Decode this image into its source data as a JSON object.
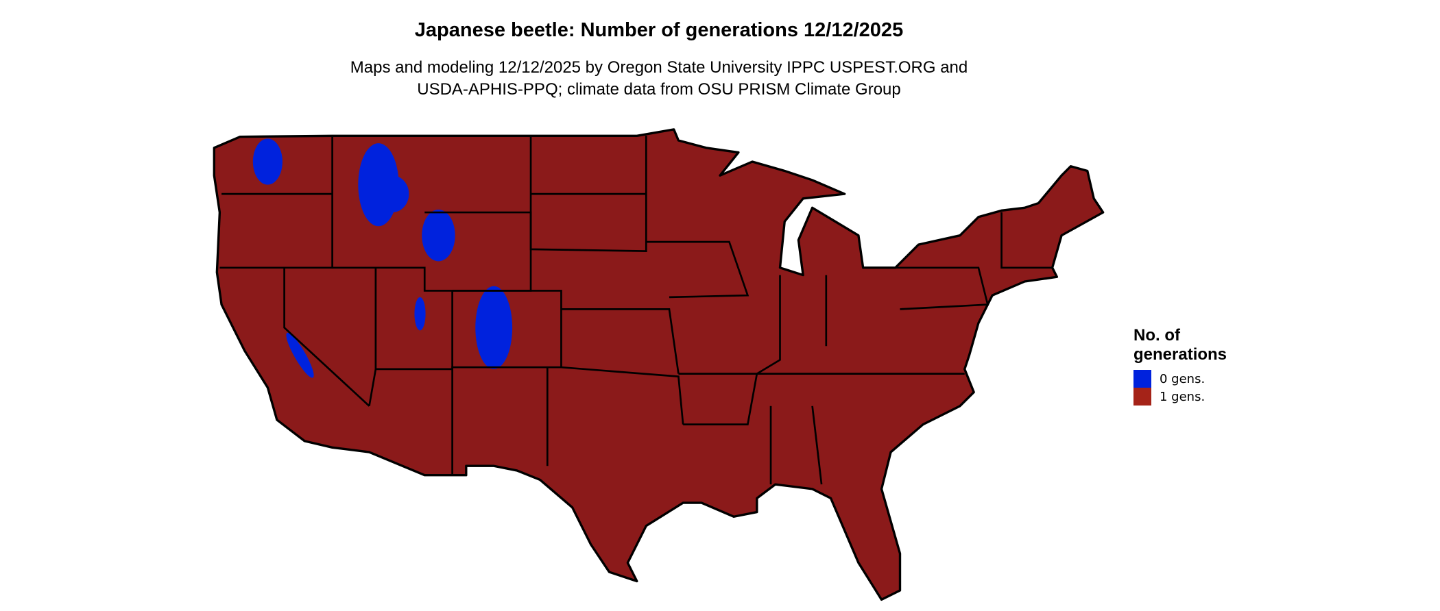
{
  "title": "Japanese beetle: Number of generations 12/12/2025",
  "subtitle_line1": "Maps and modeling 12/12/2025 by Oregon State University IPPC USPEST.ORG and",
  "subtitle_line2": "USDA-APHIS-PPQ; climate data from OSU PRISM Climate Group",
  "legend": {
    "title_line1": "No. of",
    "title_line2": "generations",
    "items": [
      {
        "label": "0 gens.",
        "color": "#0022DD"
      },
      {
        "label": "1 gens.",
        "color": "#A52318"
      }
    ]
  },
  "map": {
    "region": "Contiguous United States",
    "dominant_class": "1 gens.",
    "fill_color": "#8B1A1A",
    "border_color": "#000000"
  }
}
